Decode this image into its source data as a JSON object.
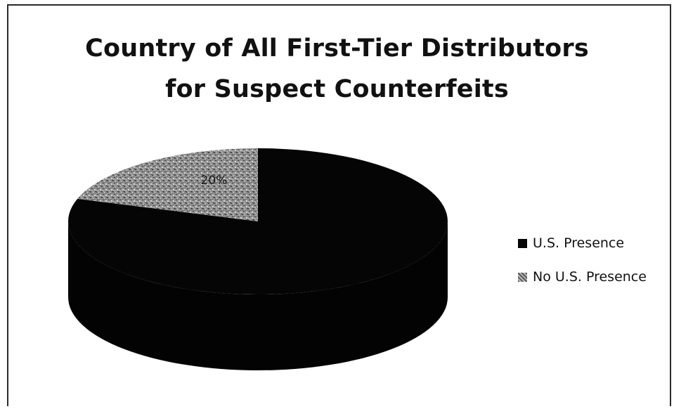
{
  "chart_data": {
    "type": "pie",
    "title_lines": [
      "Country of All First-Tier Distributors",
      "for Suspect Counterfeits"
    ],
    "categories": [
      "U.S. Presence",
      "No U.S. Presence"
    ],
    "values": [
      80,
      20
    ],
    "data_labels": [
      "",
      "20%"
    ],
    "legend_position": "right",
    "colors": [
      "#050505",
      "#8c8c8c"
    ]
  }
}
